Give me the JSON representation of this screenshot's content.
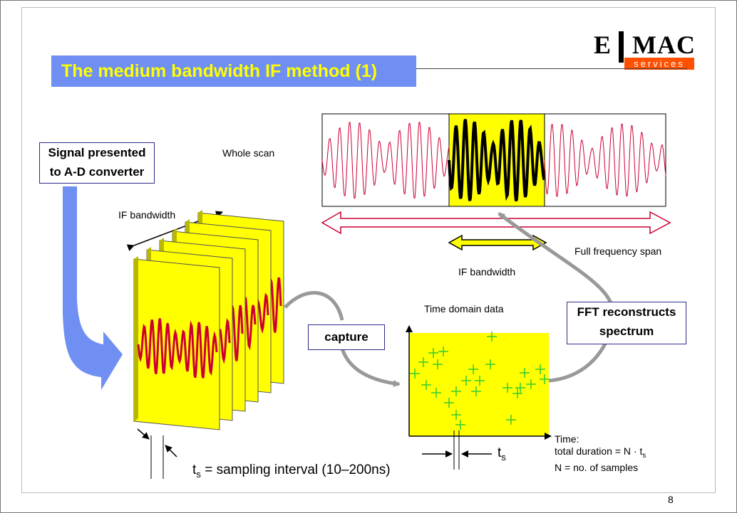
{
  "slide": {
    "title": "The medium bandwidth IF method (1)",
    "page_number": "8",
    "logo": {
      "left": "E",
      "right": "MAC",
      "tag": "services",
      "accent_color": "#ff5000"
    }
  },
  "labels": {
    "signal_box": [
      "Signal presented",
      "to A-D converter"
    ],
    "whole_scan": "Whole scan",
    "if_bandwidth_top": "IF bandwidth",
    "if_bandwidth_bottom": "IF bandwidth",
    "full_frequency_span": "Full frequency span",
    "time_domain_data": "Time domain data",
    "capture": "capture",
    "fft_box": [
      "FFT reconstructs",
      "spectrum"
    ],
    "ts_symbol": "t",
    "ts_sub": "s",
    "sampling_interval": " = sampling interval (10–200ns)",
    "time_caption": [
      "Time:",
      "total duration = N · t",
      "N = no. of samples"
    ],
    "time_caption_sub": "s"
  },
  "colors": {
    "title_bar": "#6f8ff3",
    "title_text": "#ffff00",
    "panel_yellow": "#ffff00",
    "signal_red": "#cc0033",
    "arrow_blue": "#6f8ff3",
    "marker_green": "#33cc33",
    "span_arrow": "#cc0033"
  }
}
